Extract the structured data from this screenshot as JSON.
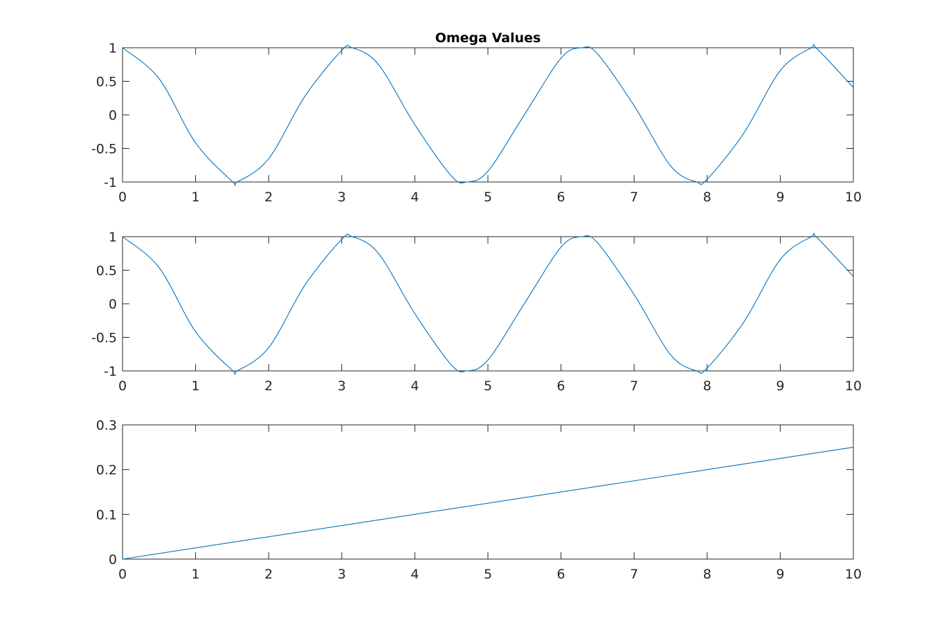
{
  "figure": {
    "title": "Omega Values",
    "line_color": "#0072BD"
  },
  "chart_data": [
    {
      "type": "line",
      "title": "Omega Values",
      "xlabel": "",
      "ylabel": "",
      "xlim": [
        0,
        10
      ],
      "ylim": [
        -1,
        1
      ],
      "xticks": [
        0,
        1,
        2,
        3,
        4,
        5,
        6,
        7,
        8,
        9,
        10
      ],
      "yticks": [
        -1,
        -0.5,
        0,
        0.5,
        1
      ],
      "xtick_labels": [
        "0",
        "1",
        "2",
        "3",
        "4",
        "5",
        "6",
        "7",
        "8",
        "9",
        "10"
      ],
      "ytick_labels": [
        "-1",
        "-0.5",
        "0",
        "0.5",
        "1"
      ],
      "grid": false,
      "series": [
        {
          "x": [
            0,
            0.5,
            1,
            1.5,
            1.571,
            2,
            2.5,
            3,
            3.142,
            3.5,
            4,
            4.5,
            4.712,
            5,
            5.5,
            6,
            6.283,
            6.5,
            7,
            7.5,
            7.854,
            8,
            8.5,
            9,
            9.425,
            9.5,
            10
          ],
          "y": [
            1,
            0.54,
            -0.416,
            -0.99,
            -1,
            -0.654,
            0.284,
            0.96,
            1,
            0.754,
            -0.146,
            -0.911,
            -1,
            -0.839,
            0.004,
            0.844,
            1,
            0.908,
            0.137,
            -0.76,
            -1,
            -0.958,
            -0.275,
            0.66,
            1,
            0.989,
            0.408
          ]
        }
      ]
    },
    {
      "type": "line",
      "title": "",
      "xlabel": "",
      "ylabel": "",
      "xlim": [
        0,
        10
      ],
      "ylim": [
        -1,
        1
      ],
      "xticks": [
        0,
        1,
        2,
        3,
        4,
        5,
        6,
        7,
        8,
        9,
        10
      ],
      "yticks": [
        -1,
        -0.5,
        0,
        0.5,
        1
      ],
      "xtick_labels": [
        "0",
        "1",
        "2",
        "3",
        "4",
        "5",
        "6",
        "7",
        "8",
        "9",
        "10"
      ],
      "ytick_labels": [
        "-1",
        "-0.5",
        "0",
        "0.5",
        "1"
      ],
      "grid": false,
      "series": [
        {
          "x": [
            0,
            0.5,
            1,
            1.5,
            1.571,
            2,
            2.5,
            3,
            3.142,
            3.5,
            4,
            4.5,
            4.712,
            5,
            5.5,
            6,
            6.283,
            6.5,
            7,
            7.5,
            7.854,
            8,
            8.5,
            9,
            9.425,
            9.5,
            10
          ],
          "y": [
            1,
            0.54,
            -0.416,
            -0.99,
            -1,
            -0.654,
            0.284,
            0.96,
            1,
            0.754,
            -0.146,
            -0.911,
            -1,
            -0.839,
            0.004,
            0.844,
            1,
            0.908,
            0.137,
            -0.76,
            -1,
            -0.958,
            -0.275,
            0.66,
            1,
            0.989,
            0.408
          ]
        }
      ]
    },
    {
      "type": "line",
      "title": "",
      "xlabel": "",
      "ylabel": "",
      "xlim": [
        0,
        10
      ],
      "ylim": [
        0,
        0.3
      ],
      "xticks": [
        0,
        1,
        2,
        3,
        4,
        5,
        6,
        7,
        8,
        9,
        10
      ],
      "yticks": [
        0,
        0.1,
        0.2,
        0.3
      ],
      "xtick_labels": [
        "0",
        "1",
        "2",
        "3",
        "4",
        "5",
        "6",
        "7",
        "8",
        "9",
        "10"
      ],
      "ytick_labels": [
        "0",
        "0.1",
        "0.2",
        "0.3"
      ],
      "grid": false,
      "series": [
        {
          "x": [
            0,
            10
          ],
          "y": [
            0,
            0.25
          ]
        }
      ]
    }
  ]
}
